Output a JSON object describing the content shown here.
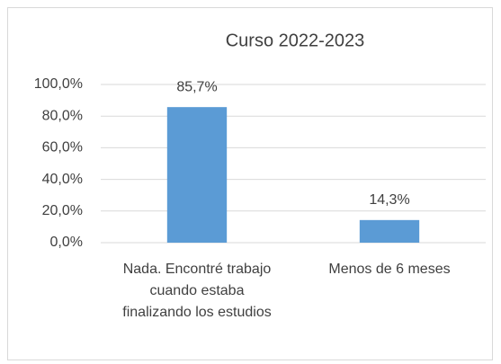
{
  "chart_data": {
    "type": "bar",
    "title": "Curso 2022-2023",
    "categories": [
      "Nada. Encontré trabajo cuando estaba finalizando los estudios",
      "Menos de 6 meses"
    ],
    "values": [
      85.7,
      14.3
    ],
    "value_labels": [
      "85,7%",
      "14,3%"
    ],
    "color": "#5b9bd5",
    "ylim": [
      0,
      100
    ],
    "yticks": [
      {
        "value": 0,
        "label": "0,0%"
      },
      {
        "value": 20,
        "label": "20,0%"
      },
      {
        "value": 40,
        "label": "40,0%"
      },
      {
        "value": 60,
        "label": "60,0%"
      },
      {
        "value": 80,
        "label": "80,0%"
      },
      {
        "value": 100,
        "label": "100,0%"
      }
    ],
    "grid": true
  }
}
